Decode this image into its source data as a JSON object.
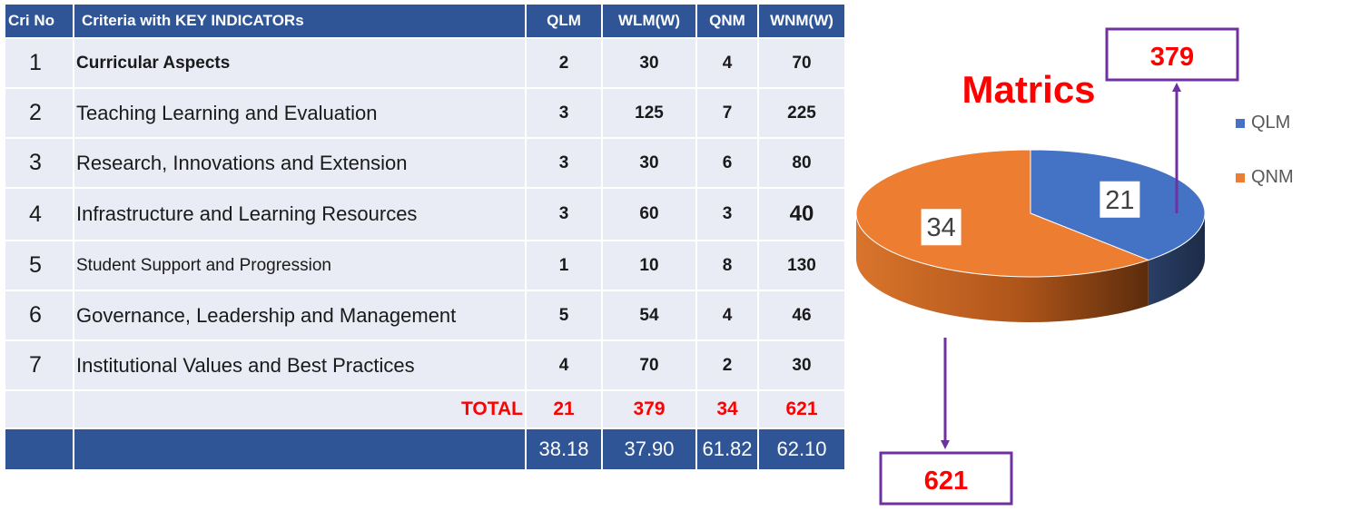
{
  "table": {
    "headers": [
      "Cri No",
      "Criteria  with KEY INDICATORs",
      "QLM",
      "WLM(W)",
      "QNM",
      "WNM(W)"
    ],
    "rows": [
      {
        "no": "1",
        "name": "Curricular  Aspects",
        "qlm": "2",
        "wlm": "30",
        "qnm": "4",
        "wnm": "70"
      },
      {
        "no": "2",
        "name": "Teaching Learning and Evaluation",
        "qlm": "3",
        "wlm": "125",
        "qnm": "7",
        "wnm": "225"
      },
      {
        "no": "3",
        "name": "Research, Innovations and Extension",
        "qlm": "3",
        "wlm": "30",
        "qnm": "6",
        "wnm": "80"
      },
      {
        "no": "4",
        "name": "Infrastructure and Learning Resources",
        "qlm": "3",
        "wlm": "60",
        "qnm": "3",
        "wnm": "40"
      },
      {
        "no": "5",
        "name": "Student Support and Progression",
        "qlm": "1",
        "wlm": "10",
        "qnm": "8",
        "wnm": "130"
      },
      {
        "no": "6",
        "name": "Governance, Leadership and Management",
        "qlm": "5",
        "wlm": "54",
        "qnm": "4",
        "wnm": "46"
      },
      {
        "no": "7",
        "name": "Institutional Values and Best Practices",
        "qlm": "4",
        "wlm": "70",
        "qnm": "2",
        "wnm": "30"
      }
    ],
    "total": {
      "label": "TOTAL",
      "qlm": "21",
      "wlm": "379",
      "qnm": "34",
      "wnm": "621"
    },
    "percent": {
      "qlm": "38.18",
      "wlm": "37.90",
      "qnm": "61.82",
      "wnm": "62.10"
    }
  },
  "chart_data": {
    "type": "pie",
    "title": "Matrics",
    "categories": [
      "QLM",
      "QNM"
    ],
    "values": [
      21,
      34
    ],
    "data_labels": [
      "21",
      "34"
    ],
    "colors": {
      "QLM": "#4472c4",
      "QNM": "#ed7d31",
      "title": "#ff0000",
      "callout_border": "#7030a0",
      "callout_text": "#ff0000"
    },
    "legend_position": "right",
    "callouts": [
      {
        "series": "QLM",
        "text": "379"
      },
      {
        "series": "QNM",
        "text": "621"
      }
    ]
  }
}
